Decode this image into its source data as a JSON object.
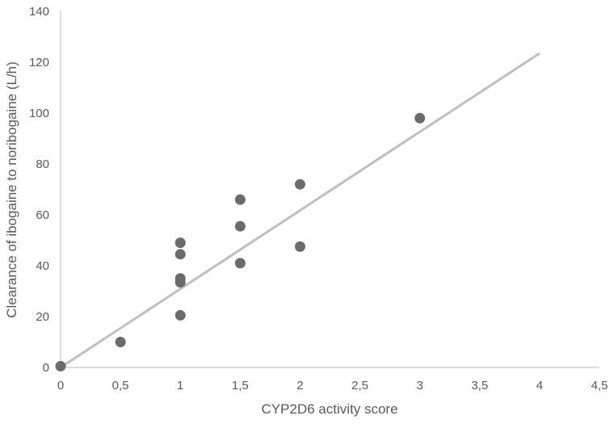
{
  "chart_data": {
    "type": "scatter",
    "title": "",
    "xlabel": "CYP2D6 activity score",
    "ylabel": "Clearance of ibogaine to noribogaine (L/h)",
    "xlim": [
      0,
      4.5
    ],
    "ylim": [
      0,
      140
    ],
    "xticks": [
      0,
      0.5,
      1,
      1.5,
      2,
      2.5,
      3,
      3.5,
      4,
      4.5
    ],
    "xtick_labels": [
      "0",
      "0,5",
      "1",
      "1,5",
      "2",
      "2,5",
      "3",
      "3,5",
      "4",
      "4,5"
    ],
    "yticks": [
      0,
      20,
      40,
      60,
      80,
      100,
      120,
      140
    ],
    "ytick_labels": [
      "0",
      "20",
      "40",
      "60",
      "80",
      "100",
      "120",
      "140"
    ],
    "grid": false,
    "points": [
      {
        "x": 0,
        "y": 0.5
      },
      {
        "x": 0.5,
        "y": 10
      },
      {
        "x": 1,
        "y": 49
      },
      {
        "x": 1,
        "y": 44.5
      },
      {
        "x": 1,
        "y": 35
      },
      {
        "x": 1,
        "y": 33.5
      },
      {
        "x": 1,
        "y": 20.5
      },
      {
        "x": 1.5,
        "y": 66
      },
      {
        "x": 1.5,
        "y": 55.5
      },
      {
        "x": 1.5,
        "y": 41
      },
      {
        "x": 2,
        "y": 72
      },
      {
        "x": 2,
        "y": 47.5
      },
      {
        "x": 3,
        "y": 98
      }
    ],
    "trendline": {
      "type": "linear",
      "from": {
        "x": 0,
        "y": 0
      },
      "to": {
        "x": 4,
        "y": 123.5
      }
    },
    "colors": {
      "points": "#6b6b6b",
      "trendline": "#bfbfbf",
      "axis": "#d0d0d0"
    }
  }
}
